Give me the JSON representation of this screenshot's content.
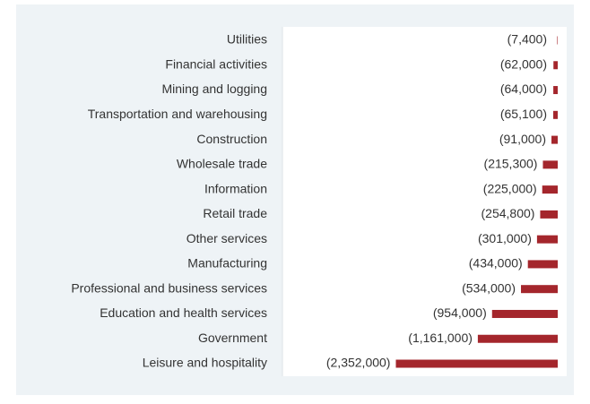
{
  "chart_data": {
    "type": "hbar",
    "categories": [
      "Utilities",
      "Financial activities",
      "Mining and logging",
      "Transportation and warehousing",
      "Construction",
      "Wholesale trade",
      "Information",
      "Retail trade",
      "Other services",
      "Manufacturing",
      "Professional and business services",
      "Education and health services",
      "Government",
      "Leisure and hospitality"
    ],
    "values": [
      -7400,
      -62000,
      -64000,
      -65100,
      -91000,
      -215300,
      -225000,
      -254800,
      -301000,
      -434000,
      -534000,
      -954000,
      -1161000,
      -2352000
    ],
    "value_labels": [
      "(7,400)",
      "(62,000)",
      "(64,000)",
      "(65,100)",
      "(91,000)",
      "(215,300)",
      "(225,000)",
      "(254,800)",
      "(301,000)",
      "(434,000)",
      "(534,000)",
      "(954,000)",
      "(1,161,000)",
      "(2,352,000)"
    ],
    "color": "#a4262c",
    "xlim": [
      -4000000,
      0
    ]
  }
}
